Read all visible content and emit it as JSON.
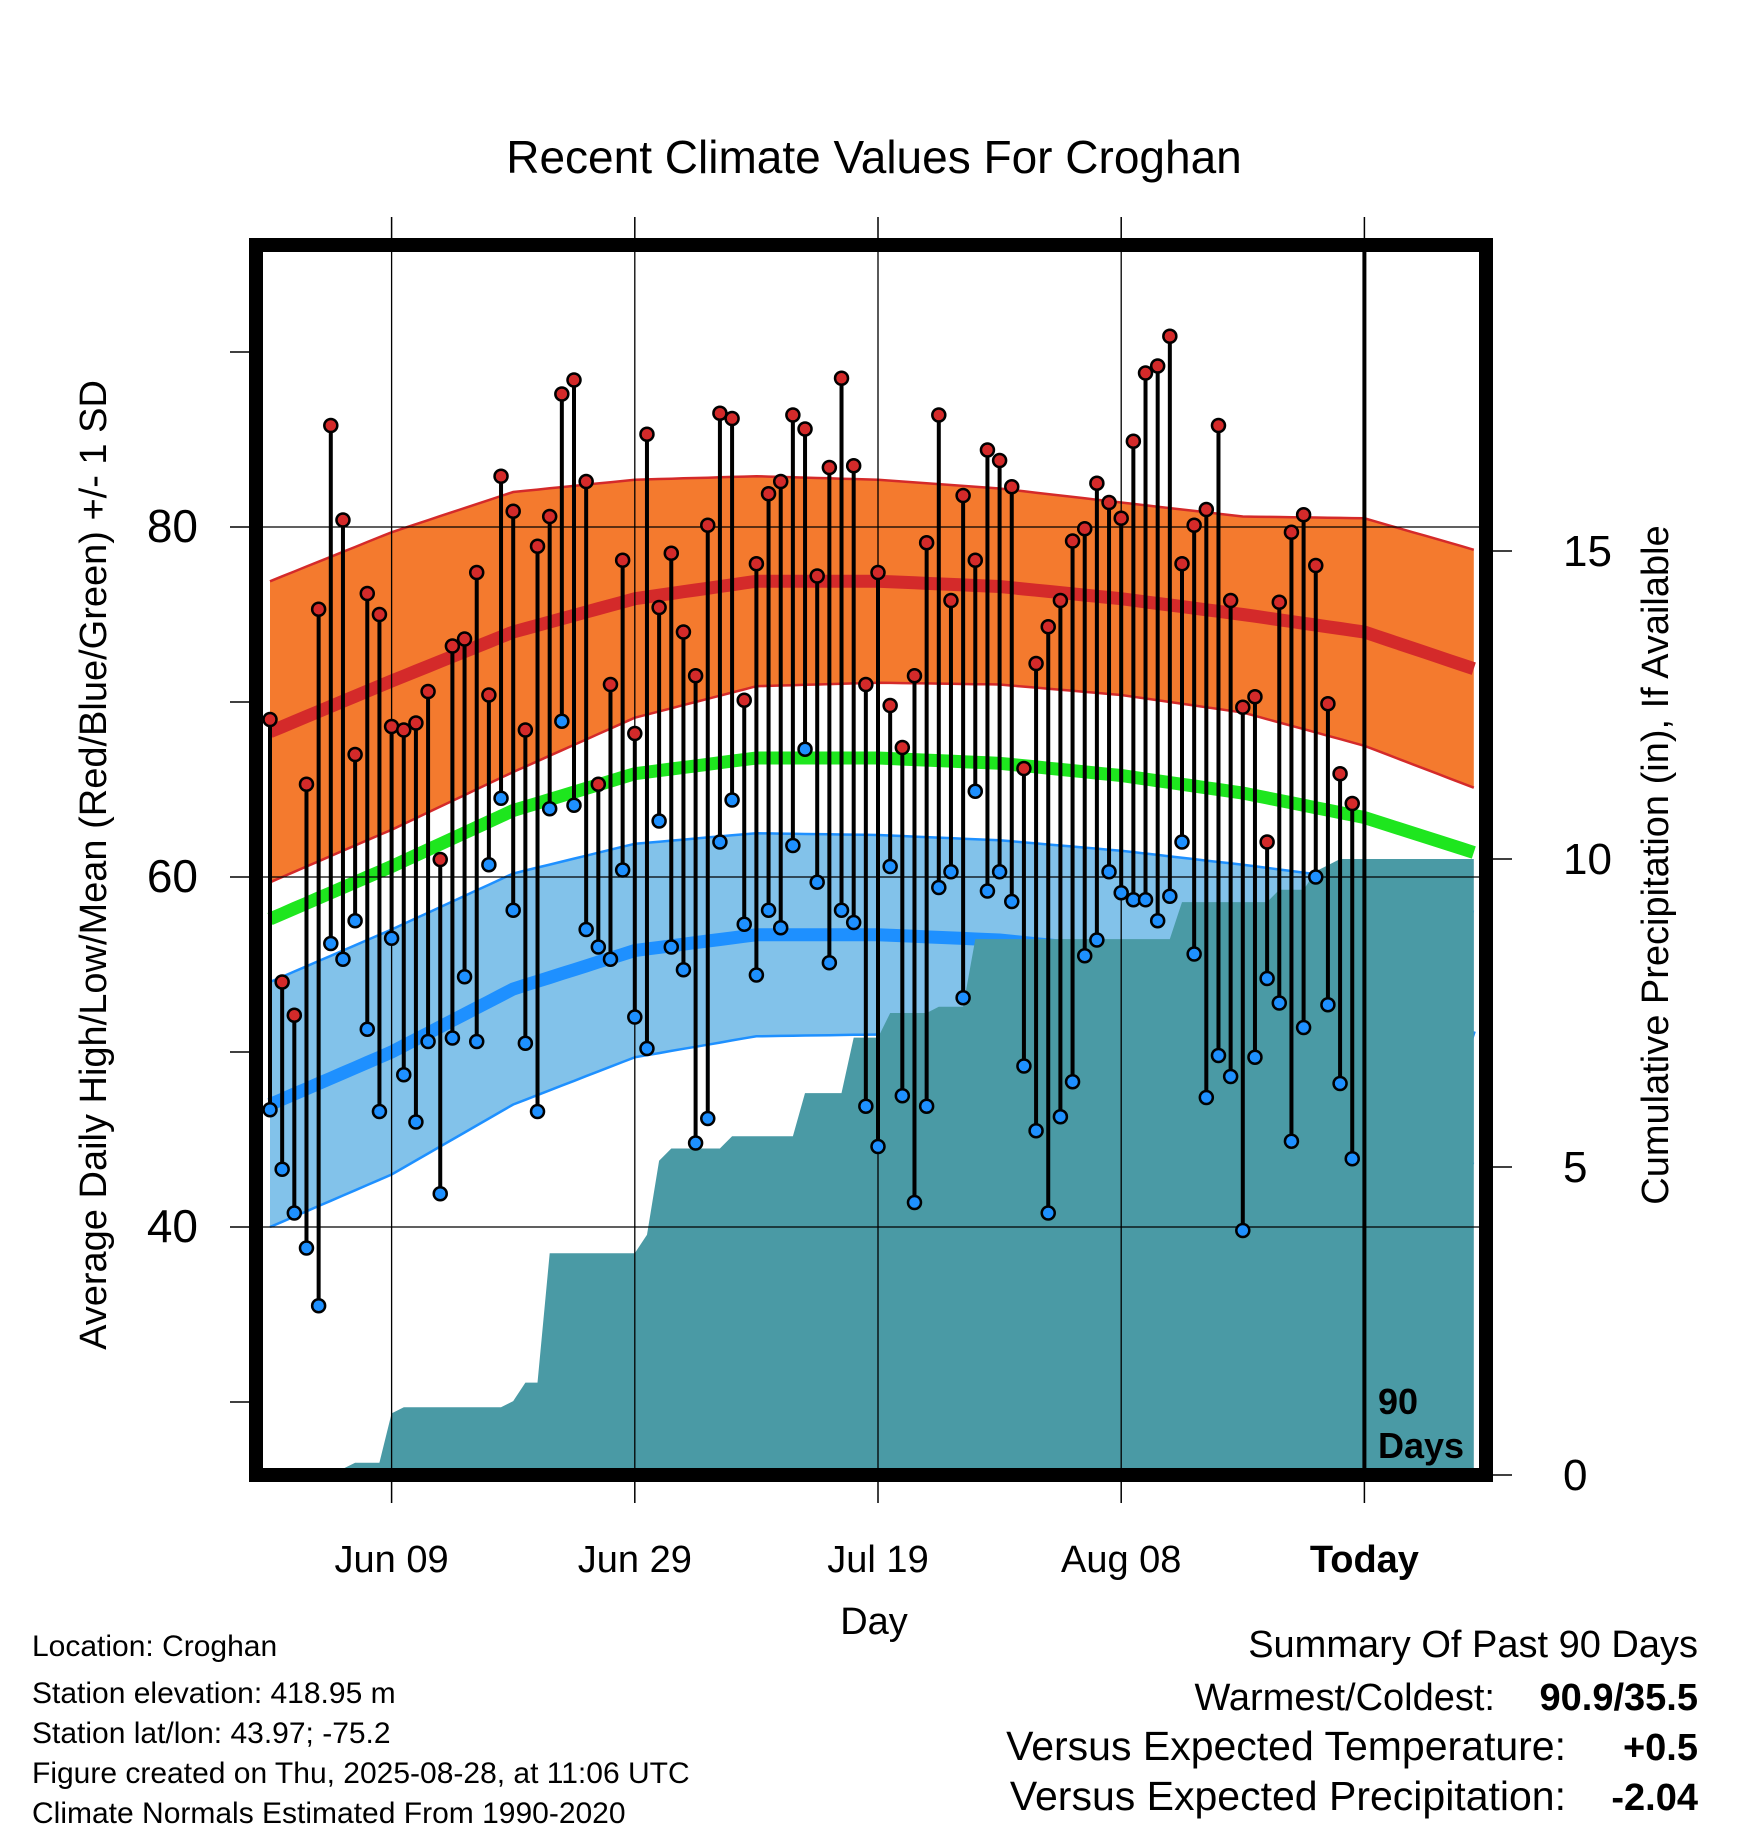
{
  "chart_data": {
    "type": "line",
    "title": "Recent Climate Values For Croghan",
    "xlabel": "Day",
    "ylabel": "Average Daily High/Low/Mean (Red/Blue/Green) +/- 1 SD",
    "ylabel_right": "Cumulative Precipitation (in), If Available",
    "ylim": [
      27,
      97
    ],
    "ylim_right": [
      0,
      20
    ],
    "y_ticks": [
      "40",
      "60",
      "80"
    ],
    "y_ticks_right": [
      "0",
      "5",
      "10",
      "15"
    ],
    "x_ticks": [
      "Jun 09",
      "Jun 29",
      "Jul 19",
      "Aug 08",
      "Today"
    ],
    "x_tick_days": [
      10,
      30,
      50,
      70,
      90
    ],
    "today_day": 90,
    "today_label": [
      "90",
      "Days"
    ],
    "grid": true,
    "colors": {
      "high": "#d42a2a",
      "high_band": "#f47a2e",
      "low": "#1e90ff",
      "low_band": "#82c2ea",
      "mean": "#1ee61e",
      "precip": "#4a9aa5"
    },
    "normals_days": [
      0,
      10,
      20,
      30,
      40,
      50,
      60,
      70,
      80,
      90,
      99
    ],
    "normal_high": [
      68.3,
      71.2,
      74.0,
      75.9,
      76.9,
      76.9,
      76.6,
      75.9,
      75.0,
      74.0,
      71.9
    ],
    "normal_high_sd": [
      8.6,
      8.5,
      8.0,
      6.8,
      6.0,
      5.8,
      5.6,
      5.5,
      5.6,
      6.5,
      6.8
    ],
    "normal_low": [
      47.0,
      50.0,
      53.6,
      55.8,
      56.7,
      56.7,
      56.4,
      55.7,
      54.5,
      52.8,
      50.8
    ],
    "normal_low_sd": [
      7.0,
      7.0,
      6.6,
      6.1,
      5.8,
      5.7,
      5.7,
      5.8,
      6.2,
      7.0,
      7.2
    ],
    "normal_mean": [
      57.6,
      60.6,
      63.8,
      65.9,
      66.8,
      66.8,
      66.5,
      65.8,
      64.8,
      63.4,
      61.4
    ],
    "days": [
      0,
      1,
      2,
      3,
      4,
      5,
      6,
      7,
      8,
      9,
      10,
      11,
      12,
      13,
      14,
      15,
      16,
      17,
      18,
      19,
      20,
      21,
      22,
      23,
      24,
      25,
      26,
      27,
      28,
      29,
      30,
      31,
      32,
      33,
      34,
      35,
      36,
      37,
      38,
      39,
      40,
      41,
      42,
      43,
      44,
      45,
      46,
      47,
      48,
      49,
      50,
      51,
      52,
      53,
      54,
      55,
      56,
      57,
      58,
      59,
      60,
      61,
      62,
      63,
      64,
      65,
      66,
      67,
      68,
      69,
      70,
      71,
      72,
      73,
      74,
      75,
      76,
      77,
      78,
      79,
      80,
      81,
      82,
      83,
      84,
      85,
      86,
      87,
      88,
      89
    ],
    "daily_high": [
      69.0,
      54.0,
      52.1,
      65.3,
      75.3,
      85.8,
      80.4,
      67.0,
      76.2,
      75.0,
      68.6,
      68.4,
      68.8,
      70.6,
      61.0,
      73.2,
      73.6,
      77.4,
      70.4,
      82.9,
      80.9,
      68.4,
      78.9,
      80.6,
      87.6,
      88.4,
      82.6,
      65.3,
      71.0,
      78.1,
      68.2,
      85.3,
      75.4,
      78.5,
      74.0,
      71.5,
      80.1,
      86.5,
      86.2,
      70.1,
      77.9,
      81.9,
      82.6,
      86.4,
      85.6,
      77.2,
      83.4,
      88.5,
      83.5,
      71.0,
      77.4,
      69.8,
      67.4,
      71.5,
      79.1,
      86.4,
      75.8,
      81.8,
      78.1,
      84.4,
      83.8,
      82.3,
      66.2,
      72.2,
      74.3,
      75.8,
      79.2,
      79.9,
      82.5,
      81.4,
      80.5,
      84.9,
      88.8,
      89.2,
      90.9,
      77.9,
      80.1,
      81.0,
      85.8,
      75.8,
      69.7,
      70.3,
      62.0,
      75.7,
      79.7,
      80.7,
      77.8,
      69.9,
      65.9,
      64.2
    ],
    "daily_low": [
      46.7,
      43.3,
      40.8,
      38.8,
      35.5,
      56.2,
      55.3,
      57.5,
      51.3,
      46.6,
      56.5,
      48.7,
      46.0,
      50.6,
      41.9,
      50.8,
      54.3,
      50.6,
      60.7,
      64.5,
      58.1,
      50.5,
      46.6,
      63.9,
      68.9,
      64.1,
      57.0,
      56.0,
      55.3,
      60.4,
      52.0,
      50.2,
      63.2,
      56.0,
      54.7,
      44.8,
      46.2,
      62.0,
      64.4,
      57.3,
      54.4,
      58.1,
      57.1,
      61.8,
      67.3,
      59.7,
      55.1,
      58.1,
      57.4,
      46.9,
      44.6,
      60.6,
      47.5,
      41.4,
      46.9,
      59.4,
      60.3,
      53.1,
      64.9,
      59.2,
      60.3,
      58.6,
      49.2,
      45.5,
      40.8,
      46.3,
      48.3,
      55.5,
      56.4,
      60.3,
      59.1,
      58.7,
      58.7,
      57.5,
      58.9,
      62.0,
      55.6,
      47.4,
      49.8,
      48.6,
      39.8,
      49.7,
      54.2,
      52.8,
      44.9,
      51.4,
      60.0,
      52.7,
      48.2,
      43.9
    ],
    "precip_days": [
      0,
      1,
      2,
      3,
      4,
      5,
      6,
      7,
      8,
      9,
      10,
      11,
      12,
      13,
      14,
      15,
      16,
      17,
      18,
      19,
      20,
      21,
      22,
      23,
      24,
      25,
      26,
      27,
      28,
      29,
      30,
      31,
      32,
      33,
      34,
      35,
      36,
      37,
      38,
      39,
      40,
      41,
      42,
      43,
      44,
      45,
      46,
      47,
      48,
      49,
      50,
      51,
      52,
      53,
      54,
      55,
      56,
      57,
      58,
      59,
      60,
      61,
      62,
      63,
      64,
      65,
      66,
      67,
      68,
      69,
      70,
      71,
      72,
      73,
      74,
      75,
      76,
      77,
      78,
      79,
      80,
      81,
      82,
      83,
      84,
      85,
      86,
      87,
      88,
      89,
      90,
      99
    ],
    "cumulative_precip": [
      0.0,
      0.0,
      0.1,
      0.1,
      0.1,
      0.1,
      0.1,
      0.2,
      0.2,
      0.2,
      1.0,
      1.1,
      1.1,
      1.1,
      1.1,
      1.1,
      1.1,
      1.1,
      1.1,
      1.1,
      1.2,
      1.5,
      1.5,
      3.6,
      3.6,
      3.6,
      3.6,
      3.6,
      3.6,
      3.6,
      3.6,
      3.9,
      5.1,
      5.3,
      5.3,
      5.3,
      5.3,
      5.3,
      5.5,
      5.5,
      5.5,
      5.5,
      5.5,
      5.5,
      6.2,
      6.2,
      6.2,
      6.2,
      7.1,
      7.1,
      7.1,
      7.5,
      7.5,
      7.5,
      7.5,
      7.6,
      7.6,
      7.6,
      8.7,
      8.7,
      8.7,
      8.7,
      8.7,
      8.7,
      8.7,
      8.7,
      8.7,
      8.7,
      8.7,
      8.7,
      8.7,
      8.7,
      8.7,
      8.7,
      8.7,
      9.3,
      9.3,
      9.3,
      9.3,
      9.3,
      9.3,
      9.3,
      9.3,
      9.5,
      9.5,
      9.5,
      9.8,
      9.9,
      10.0,
      10.0,
      10.0,
      10.0
    ]
  },
  "info": {
    "location": "Location: Croghan",
    "elevation": "Station elevation: 418.95 m",
    "latlon": "Station lat/lon: 43.97; -75.2",
    "created": "Figure created on Thu, 2025-08-28, at 11:06 UTC",
    "normals": "Climate Normals Estimated From 1990-2020"
  },
  "summary": {
    "heading": "Summary Of Past 90 Days",
    "warmest_label": "Warmest/Coldest:",
    "warmest_value": "90.9/35.5",
    "temp_label": "Versus Expected Temperature:",
    "temp_value": "+0.5",
    "temp_color": "#d42a2a",
    "precip_label": "Versus Expected Precipitation:",
    "precip_value": "-2.04",
    "precip_color": "#a0522d"
  }
}
